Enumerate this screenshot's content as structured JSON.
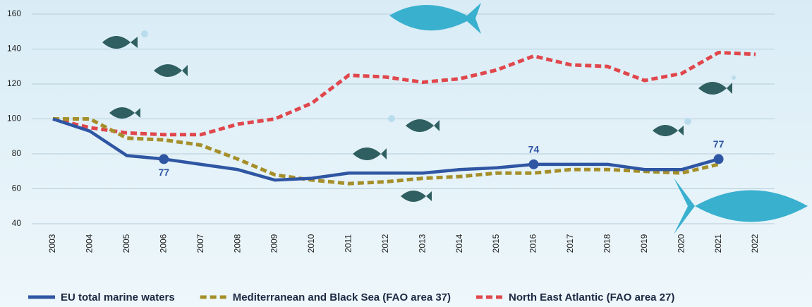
{
  "chart_data": {
    "type": "line",
    "x": [
      2003,
      2004,
      2005,
      2006,
      2007,
      2008,
      2009,
      2010,
      2011,
      2012,
      2013,
      2014,
      2015,
      2016,
      2017,
      2018,
      2019,
      2020,
      2021,
      2022
    ],
    "xlim": [
      2003,
      2022
    ],
    "ylim": [
      40,
      160
    ],
    "yticks": [
      40,
      60,
      80,
      100,
      120,
      140,
      160
    ],
    "grid": true,
    "series": [
      {
        "name": "EU total marine waters",
        "color": "#2f56a3",
        "dash": "solid",
        "labeled": [
          3,
          13,
          18
        ],
        "values": [
          100,
          93,
          79,
          77,
          74,
          71,
          65,
          66,
          69,
          69,
          69,
          71,
          72,
          74,
          74,
          74,
          71,
          71,
          77,
          null
        ]
      },
      {
        "name": "Mediterranean and Black Sea (FAO area 37)",
        "color": "#a58f2a",
        "dash": "dashed",
        "values": [
          100,
          100,
          89,
          88,
          85,
          77,
          68,
          65,
          63,
          64,
          66,
          67,
          69,
          69,
          71,
          71,
          70,
          69,
          74,
          null
        ]
      },
      {
        "name": "North East Atlantic (FAO area 27)",
        "color": "#e0474c",
        "dash": "dashed",
        "values": [
          100,
          95,
          92,
          91,
          91,
          97,
          100,
          109,
          125,
          124,
          121,
          123,
          128,
          136,
          131,
          130,
          122,
          126,
          138,
          137
        ]
      }
    ]
  }
}
